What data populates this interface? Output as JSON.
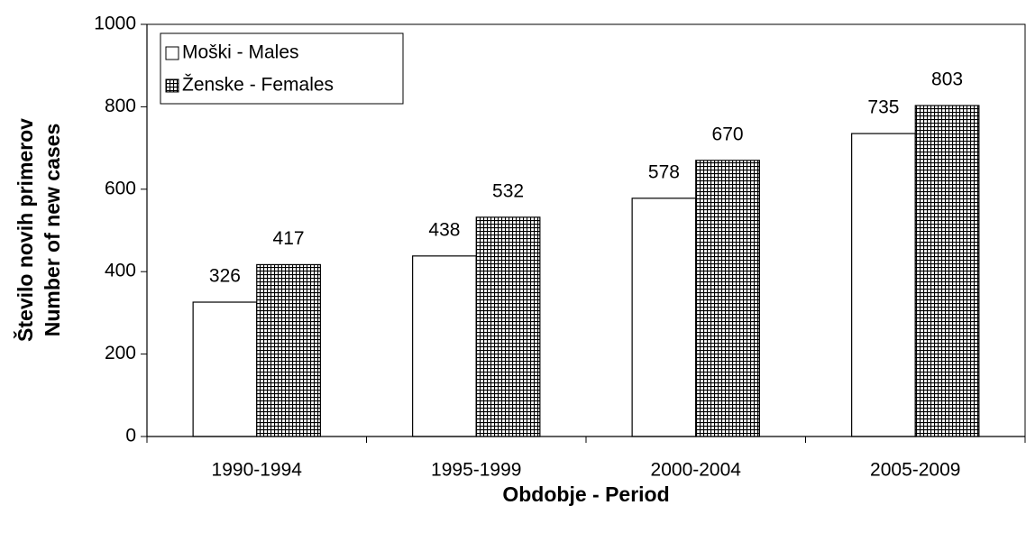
{
  "chart_data": {
    "type": "bar",
    "categories": [
      "1990-1994",
      "1995-1999",
      "2000-2004",
      "2005-2009"
    ],
    "series": [
      {
        "name": "Moški - Males",
        "color": "#ffffff",
        "values": [
          326,
          438,
          578,
          735
        ]
      },
      {
        "name": "Ženske - Females",
        "color": "#000000",
        "values": [
          417,
          532,
          670,
          803
        ]
      }
    ],
    "y_label": [
      "Število novih primerov",
      "Number of new cases"
    ],
    "x_label": "Obdobje - Period",
    "ylim": [
      0,
      1000
    ],
    "yticks": [
      0,
      200,
      400,
      600,
      800,
      1000
    ],
    "legend": "top-left"
  }
}
